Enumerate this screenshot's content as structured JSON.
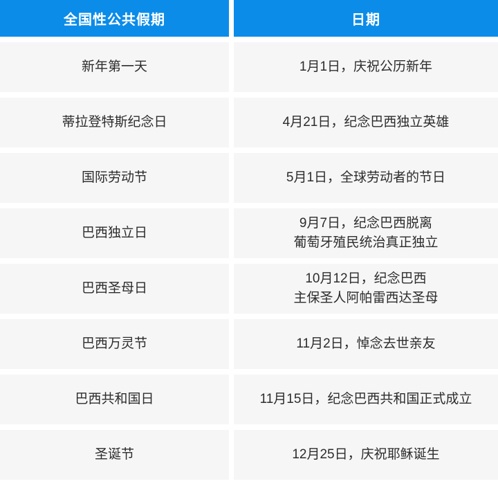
{
  "chart_data": {
    "type": "table",
    "title": "",
    "columns": [
      "全国性公共假期",
      "日期"
    ],
    "rows": [
      [
        "新年第一天",
        "1月1日，庆祝公历新年"
      ],
      [
        "蒂拉登特斯纪念日",
        "4月21日，纪念巴西独立英雄"
      ],
      [
        "国际劳动节",
        "5月1日，全球劳动者的节日"
      ],
      [
        "巴西独立日",
        "9月7日，纪念巴西脱离\n葡萄牙殖民统治真正独立"
      ],
      [
        "巴西圣母日",
        "10月12日，纪念巴西\n主保圣人阿帕雷西达圣母"
      ],
      [
        "巴西万灵节",
        "11月2日，悼念去世亲友"
      ],
      [
        "巴西共和国日",
        "11月15日，纪念巴西共和国正式成立"
      ],
      [
        "圣诞节",
        "12月25日，庆祝耶稣诞生"
      ]
    ]
  },
  "colors": {
    "header_bg": "#0b8ce9",
    "header_text": "#ffffff",
    "row_bg": "#f6f6f7",
    "body_text": "#2c2c2c",
    "page_bg": "#ffffff"
  }
}
